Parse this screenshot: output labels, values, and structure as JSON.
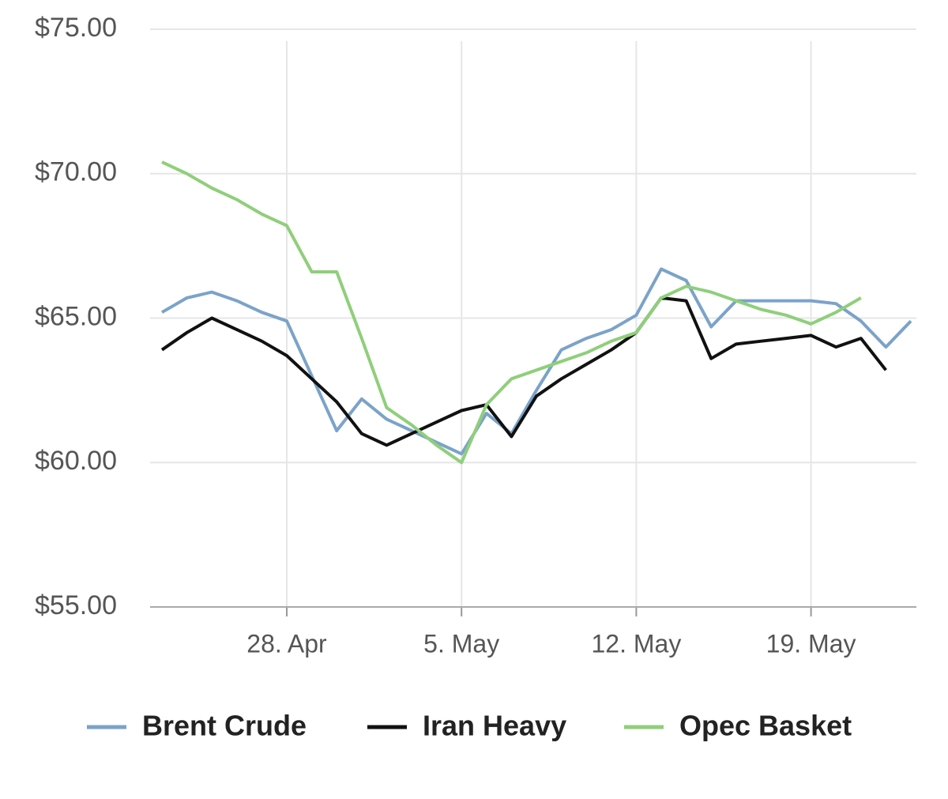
{
  "chart_data": {
    "type": "line",
    "categories": [
      null,
      null,
      null,
      null,
      null,
      "28. Apr",
      null,
      null,
      null,
      null,
      null,
      null,
      "5. May",
      null,
      null,
      null,
      null,
      null,
      null,
      "12. May",
      null,
      null,
      null,
      null,
      null,
      null,
      "19. May",
      null,
      null,
      null,
      null
    ],
    "series": [
      {
        "name": "Brent Crude",
        "color": "#7ba3c9",
        "values": [
          65.2,
          65.7,
          65.9,
          65.6,
          65.2,
          64.9,
          63.0,
          61.1,
          62.2,
          61.5,
          61.1,
          60.7,
          60.3,
          61.7,
          61.0,
          62.5,
          63.9,
          64.3,
          64.6,
          65.1,
          66.7,
          66.3,
          64.7,
          65.6,
          65.6,
          65.6,
          65.6,
          65.5,
          64.9,
          64.0,
          64.9
        ]
      },
      {
        "name": "Iran Heavy",
        "color": "#111111",
        "values": [
          63.9,
          64.5,
          65.0,
          64.6,
          64.2,
          63.7,
          62.9,
          62.1,
          61.0,
          60.6,
          61.0,
          61.4,
          61.8,
          62.0,
          60.9,
          62.3,
          62.9,
          63.4,
          63.9,
          64.5,
          65.7,
          65.6,
          63.6,
          64.1,
          64.2,
          64.3,
          64.4,
          64.0,
          64.3,
          63.2,
          null
        ]
      },
      {
        "name": "Opec Basket",
        "color": "#8fcf7a",
        "values": [
          70.4,
          70.0,
          69.5,
          69.1,
          68.6,
          68.2,
          66.6,
          66.6,
          64.3,
          61.9,
          61.3,
          60.6,
          60.0,
          62.0,
          62.9,
          63.2,
          63.5,
          63.8,
          64.2,
          64.5,
          65.7,
          66.1,
          65.9,
          65.6,
          65.3,
          65.1,
          64.8,
          65.2,
          65.7,
          null,
          null
        ]
      }
    ],
    "ylim": [
      55,
      75
    ],
    "yticks": [
      {
        "value": 55,
        "label": "$55.00"
      },
      {
        "value": 60,
        "label": "$60.00"
      },
      {
        "value": 65,
        "label": "$65.00"
      },
      {
        "value": 70,
        "label": "$70.00"
      },
      {
        "value": 75,
        "label": "$75.00"
      }
    ],
    "grid": true
  }
}
